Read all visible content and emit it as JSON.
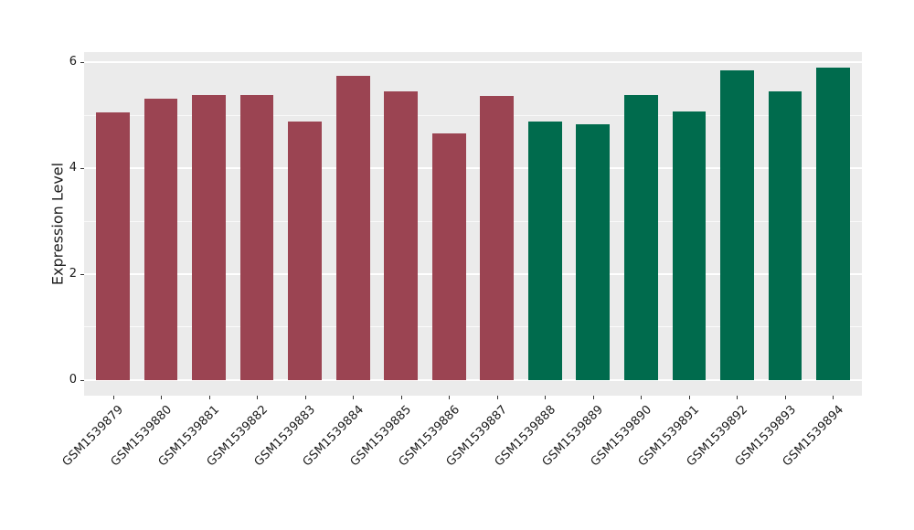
{
  "figure": {
    "background": "#FFFFFF",
    "panel_background": "#EBEBEB",
    "grid_color": "#FFFFFF",
    "text_color": "#1A1A1A",
    "tick_color": "#333333"
  },
  "chart_data": {
    "type": "bar",
    "title": "",
    "xlabel": "",
    "ylabel": "Expression Level",
    "categories": [
      "GSM1539879",
      "GSM1539880",
      "GSM1539881",
      "GSM1539882",
      "GSM1539883",
      "GSM1539884",
      "GSM1539885",
      "GSM1539886",
      "GSM1539887",
      "GSM1539888",
      "GSM1539889",
      "GSM1539890",
      "GSM1539891",
      "GSM1539892",
      "GSM1539893",
      "GSM1539894"
    ],
    "values": [
      5.05,
      5.32,
      5.39,
      5.39,
      4.88,
      5.75,
      5.46,
      4.66,
      5.37,
      4.89,
      4.84,
      5.39,
      5.07,
      5.85,
      5.46,
      5.9
    ],
    "bar_colors": [
      "#9B4452",
      "#9B4452",
      "#9B4452",
      "#9B4452",
      "#9B4452",
      "#9B4452",
      "#9B4452",
      "#9B4452",
      "#9B4452",
      "#006B4D",
      "#006B4D",
      "#006B4D",
      "#006B4D",
      "#006B4D",
      "#006B4D",
      "#006B4D"
    ],
    "yticks": [
      0,
      2,
      4,
      6
    ],
    "minor_yticks": [
      1,
      3,
      5
    ],
    "ylim": [
      0,
      6.2
    ],
    "grid": true,
    "legend": false,
    "x_label_rotation_deg": 45
  }
}
